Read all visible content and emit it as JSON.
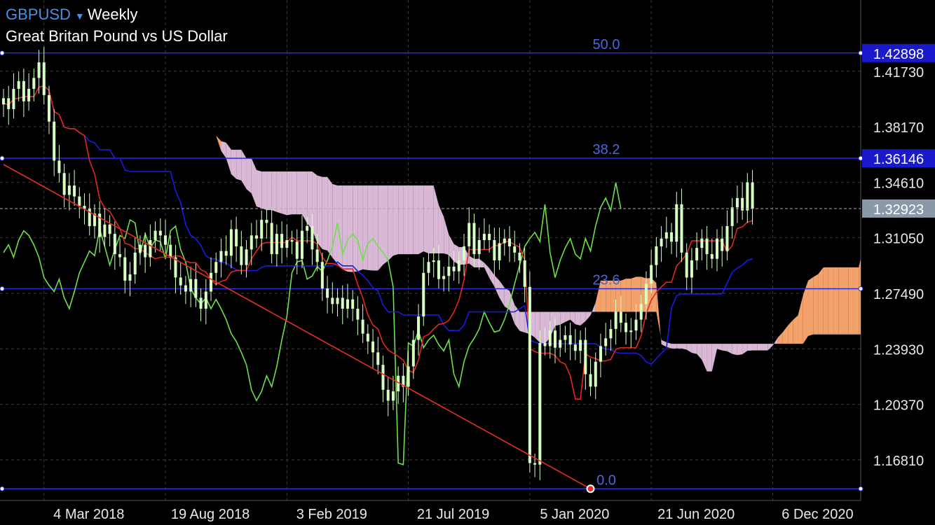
{
  "header": {
    "symbol": "GBPUSD",
    "caret": "▼",
    "timeframe": "Weekly",
    "instrument_name": "Great Britan Pound vs US Dollar"
  },
  "colors": {
    "background": "#000000",
    "grid": "#3a3a3a",
    "axis_text": "#e8e8e8",
    "bull_candle": "#d6ffc4",
    "bear_candle": "#d6ffc4",
    "tenkan": "#e0281e",
    "kijun": "#1a1ae6",
    "chikou": "#6ee04a",
    "cloud_bull": "#f3a26b",
    "cloud_bear": "#d9b8d6",
    "fib_line": "#2d2dd8",
    "fib_label": "#4b66e0",
    "fib_price_bg": "#1a1acc",
    "current_price_bg": "#8a98a8",
    "trendline": "#e53020"
  },
  "price_axis": {
    "ticks": [
      "1.41730",
      "1.38170",
      "1.34610",
      "1.31050",
      "1.27490",
      "1.23930",
      "1.20370",
      "1.16810"
    ],
    "tick_values": [
      1.4173,
      1.3817,
      1.3461,
      1.3105,
      1.2749,
      1.2393,
      1.2037,
      1.1681
    ],
    "ylim": [
      1.142,
      1.463
    ]
  },
  "time_axis": {
    "ticks": [
      "4 Mar 2018",
      "19 Aug 2018",
      "3 Feb 2019",
      "21 Jul 2019",
      "5 Jan 2020",
      "21 Jun 2020",
      "6 Dec 2020"
    ],
    "tick_week_index": [
      8,
      32,
      56,
      80,
      104,
      128,
      152
    ],
    "start_date": "2017-12-31",
    "total_weeks": 166
  },
  "fibonacci": {
    "levels": [
      {
        "label": "50.0",
        "price": 1.42898,
        "price_label": "1.42898",
        "show_price_tag": true
      },
      {
        "label": "38.2",
        "price": 1.36146,
        "price_label": "1.36146",
        "show_price_tag": true
      },
      {
        "label": "23.6",
        "price": 1.2778,
        "price_label": "",
        "show_price_tag": false
      },
      {
        "label": "0.0",
        "price": 1.1495,
        "price_label": "",
        "show_price_tag": false
      }
    ]
  },
  "current_price": {
    "price": 1.32923,
    "label": "1.32923"
  },
  "trendline": {
    "from": {
      "week": 0,
      "price": 1.3575
    },
    "to": {
      "week": 116,
      "price": 1.1495
    }
  },
  "chart_data": {
    "type": "candlestick",
    "title": "GBPUSD Weekly",
    "series": [
      {
        "kind": "candles",
        "x_start_week": 0,
        "close": [
          1.4,
          1.393,
          1.406,
          1.411,
          1.398,
          1.406,
          1.413,
          1.423,
          1.402,
          1.385,
          1.36,
          1.352,
          1.338,
          1.344,
          1.337,
          1.331,
          1.329,
          1.318,
          1.326,
          1.311,
          1.319,
          1.313,
          1.3,
          1.298,
          1.283,
          1.287,
          1.301,
          1.306,
          1.298,
          1.309,
          1.315,
          1.312,
          1.306,
          1.298,
          1.285,
          1.28,
          1.276,
          1.284,
          1.272,
          1.265,
          1.276,
          1.288,
          1.295,
          1.302,
          1.299,
          1.316,
          1.305,
          1.293,
          1.303,
          1.312,
          1.31,
          1.322,
          1.32,
          1.3,
          1.313,
          1.304,
          1.309,
          1.308,
          1.297,
          1.315,
          1.318,
          1.303,
          1.295,
          1.278,
          1.272,
          1.268,
          1.272,
          1.265,
          1.271,
          1.265,
          1.258,
          1.249,
          1.244,
          1.237,
          1.229,
          1.213,
          1.206,
          1.212,
          1.222,
          1.215,
          1.228,
          1.245,
          1.26,
          1.288,
          1.295,
          1.296,
          1.284,
          1.286,
          1.292,
          1.289,
          1.296,
          1.305,
          1.32,
          1.3,
          1.309,
          1.313,
          1.309,
          1.296,
          1.307,
          1.31,
          1.305,
          1.301,
          1.296,
          1.279,
          1.166,
          1.165,
          1.243,
          1.241,
          1.251,
          1.24,
          1.245,
          1.248,
          1.242,
          1.238,
          1.245,
          1.223,
          1.215,
          1.231,
          1.241,
          1.246,
          1.252,
          1.263,
          1.256,
          1.25,
          1.251,
          1.258,
          1.268,
          1.281,
          1.293,
          1.305,
          1.31,
          1.314,
          1.308,
          1.332,
          1.301,
          1.285,
          1.296,
          1.304,
          1.31,
          1.3,
          1.297,
          1.31,
          1.302,
          1.318,
          1.33,
          1.336,
          1.328,
          1.346,
          1.329
        ]
      },
      {
        "kind": "tenkan",
        "name": "",
        "values": "computed-from-candles"
      },
      {
        "kind": "kijun",
        "name": "",
        "values": "computed-from-candles"
      },
      {
        "kind": "chikou",
        "name": "",
        "values": "close-shifted-back-26"
      },
      {
        "kind": "cloud",
        "name": "",
        "values": "senkou-spans-shifted-forward-26"
      }
    ],
    "xlabel": "",
    "ylabel": "",
    "grid": true
  }
}
